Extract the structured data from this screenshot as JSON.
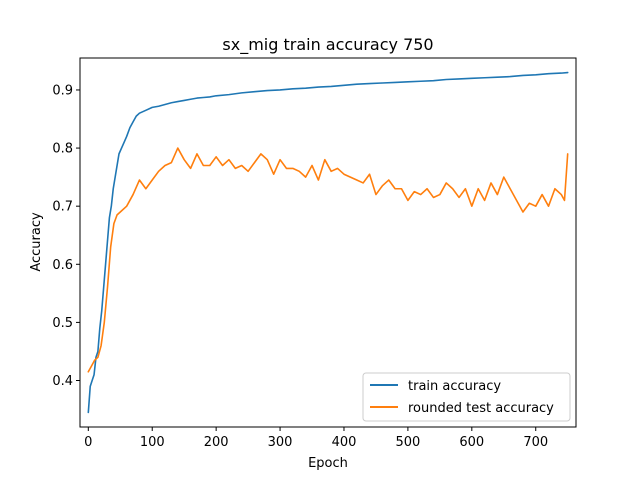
{
  "chart_data": {
    "type": "line",
    "title": "sx_mig train accuracy 750",
    "xlabel": "Epoch",
    "ylabel": "Accuracy",
    "xlim": [
      -13,
      763
    ],
    "ylim": [
      0.32,
      0.955
    ],
    "xticks": [
      0,
      100,
      200,
      300,
      400,
      500,
      600,
      700
    ],
    "xtick_labels": [
      "0",
      "100",
      "200",
      "300",
      "400",
      "500",
      "600",
      "700"
    ],
    "yticks": [
      0.4,
      0.5,
      0.6,
      0.7,
      0.8,
      0.9
    ],
    "ytick_labels": [
      "0.4",
      "0.5",
      "0.6",
      "0.7",
      "0.8",
      "0.9"
    ],
    "grid": false,
    "legend_position": "lower-right",
    "series": [
      {
        "name": "train accuracy",
        "color": "#1f77b4",
        "x": [
          0,
          3,
          6,
          9,
          12,
          15,
          18,
          21,
          24,
          27,
          30,
          33,
          36,
          39,
          42,
          45,
          48,
          52,
          56,
          60,
          65,
          70,
          75,
          80,
          90,
          100,
          110,
          120,
          130,
          140,
          150,
          160,
          170,
          180,
          190,
          200,
          220,
          240,
          260,
          280,
          300,
          320,
          340,
          360,
          380,
          400,
          420,
          440,
          460,
          480,
          500,
          520,
          540,
          560,
          580,
          600,
          620,
          640,
          660,
          680,
          700,
          720,
          740,
          750
        ],
        "values": [
          0.345,
          0.39,
          0.4,
          0.41,
          0.44,
          0.45,
          0.49,
          0.52,
          0.56,
          0.6,
          0.64,
          0.68,
          0.7,
          0.73,
          0.75,
          0.77,
          0.79,
          0.8,
          0.81,
          0.82,
          0.835,
          0.845,
          0.855,
          0.86,
          0.865,
          0.87,
          0.872,
          0.875,
          0.878,
          0.88,
          0.882,
          0.884,
          0.886,
          0.887,
          0.888,
          0.89,
          0.892,
          0.895,
          0.897,
          0.899,
          0.9,
          0.902,
          0.903,
          0.905,
          0.906,
          0.908,
          0.91,
          0.911,
          0.912,
          0.913,
          0.914,
          0.915,
          0.916,
          0.918,
          0.919,
          0.92,
          0.921,
          0.922,
          0.923,
          0.925,
          0.926,
          0.928,
          0.929,
          0.93
        ]
      },
      {
        "name": "rounded test accuracy",
        "color": "#ff7f0e",
        "x": [
          0,
          5,
          10,
          15,
          20,
          25,
          30,
          35,
          40,
          45,
          50,
          60,
          70,
          80,
          90,
          100,
          110,
          120,
          130,
          140,
          150,
          160,
          170,
          180,
          190,
          200,
          210,
          220,
          230,
          240,
          250,
          260,
          270,
          280,
          290,
          300,
          310,
          320,
          330,
          340,
          350,
          360,
          370,
          380,
          390,
          400,
          410,
          420,
          430,
          440,
          450,
          460,
          470,
          480,
          490,
          500,
          510,
          520,
          530,
          540,
          550,
          560,
          570,
          580,
          590,
          600,
          610,
          620,
          630,
          640,
          650,
          660,
          670,
          680,
          690,
          700,
          710,
          720,
          730,
          740,
          745,
          750
        ],
        "values": [
          0.415,
          0.425,
          0.435,
          0.44,
          0.46,
          0.5,
          0.56,
          0.63,
          0.67,
          0.685,
          0.69,
          0.7,
          0.72,
          0.745,
          0.73,
          0.745,
          0.76,
          0.77,
          0.775,
          0.8,
          0.78,
          0.765,
          0.79,
          0.77,
          0.77,
          0.785,
          0.77,
          0.78,
          0.765,
          0.77,
          0.76,
          0.775,
          0.79,
          0.78,
          0.755,
          0.78,
          0.765,
          0.765,
          0.76,
          0.75,
          0.77,
          0.745,
          0.78,
          0.76,
          0.765,
          0.755,
          0.75,
          0.745,
          0.74,
          0.755,
          0.72,
          0.735,
          0.745,
          0.73,
          0.73,
          0.71,
          0.725,
          0.72,
          0.73,
          0.715,
          0.72,
          0.74,
          0.73,
          0.715,
          0.73,
          0.7,
          0.73,
          0.71,
          0.74,
          0.72,
          0.75,
          0.73,
          0.71,
          0.69,
          0.705,
          0.7,
          0.72,
          0.7,
          0.73,
          0.72,
          0.71,
          0.79
        ]
      }
    ]
  }
}
